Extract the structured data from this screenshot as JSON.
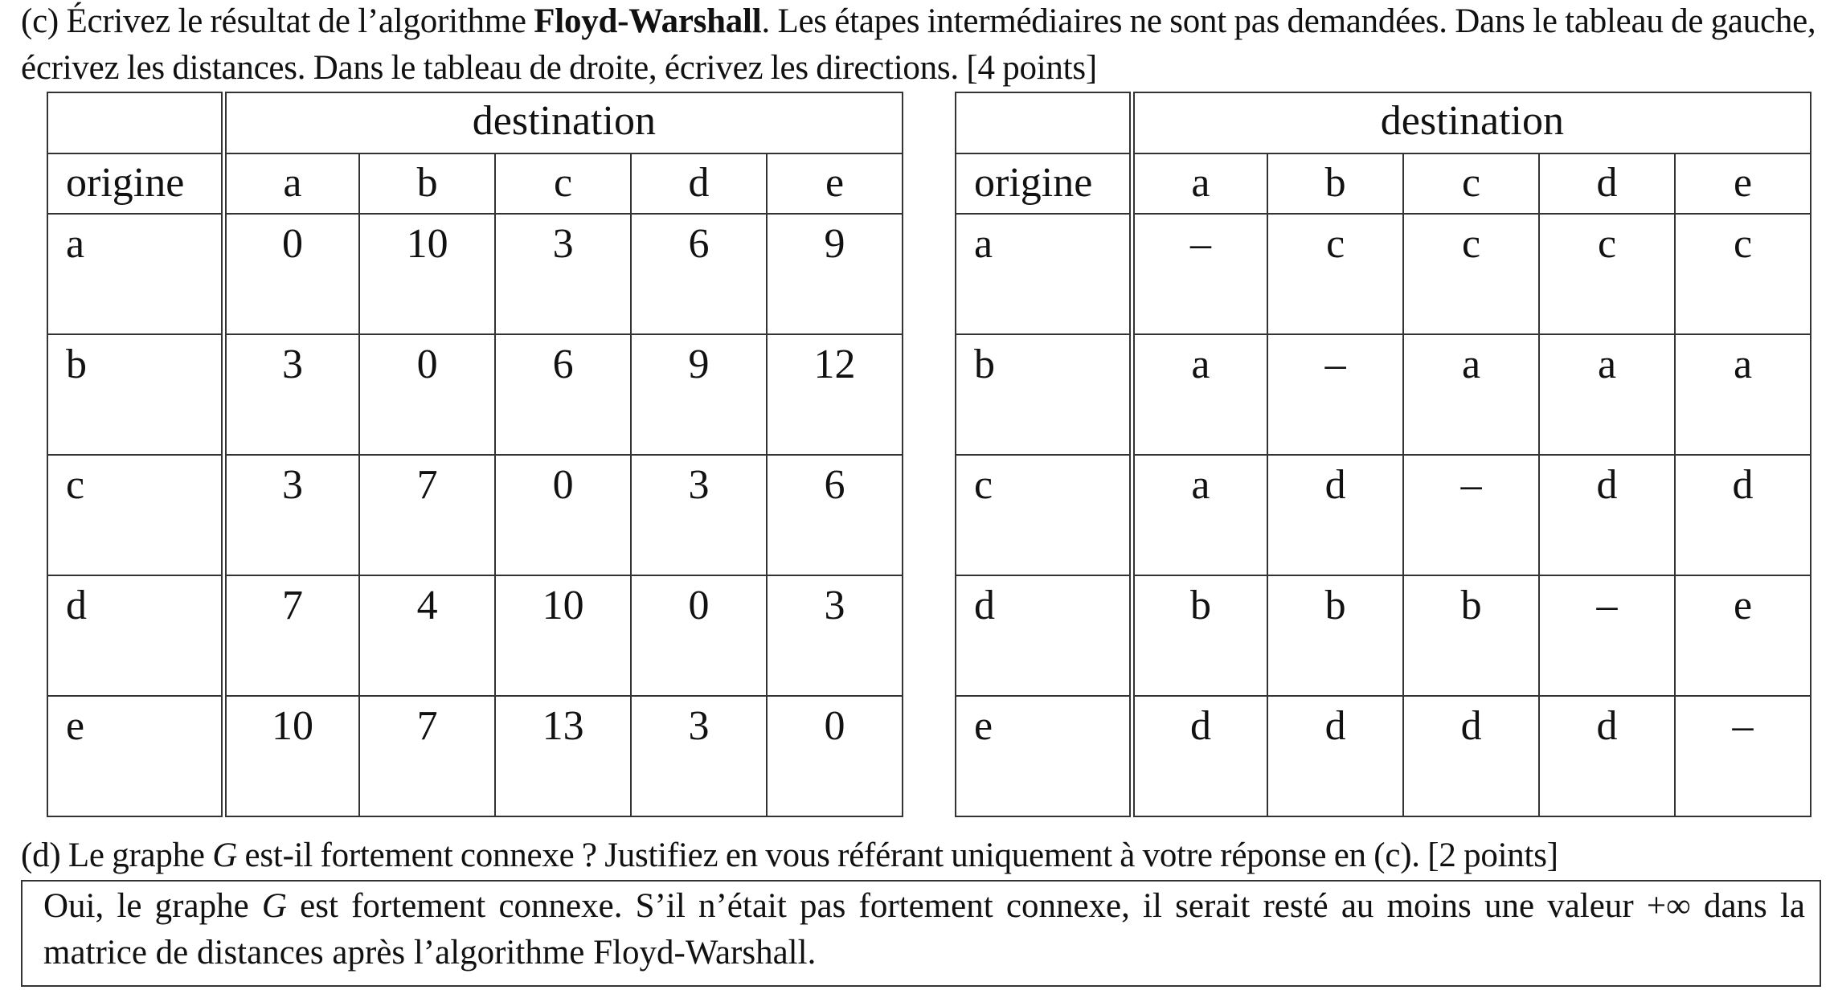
{
  "question_c": {
    "prefix": "(c) Écrivez le résultat de l’algorithme ",
    "bold": "Floyd-Warshall",
    "rest": ". Les étapes intermédiaires ne sont pas demandées. Dans le tableau de gauche, écrivez les distances. Dans le tableau de droite, écrivez les directions. [4 points]"
  },
  "distance_table": {
    "destination_label": "destination",
    "origin_label": "origine",
    "columns": [
      "a",
      "b",
      "c",
      "d",
      "e"
    ],
    "rows": [
      {
        "origin": "a",
        "values": [
          "0",
          "10",
          "3",
          "6",
          "9"
        ]
      },
      {
        "origin": "b",
        "values": [
          "3",
          "0",
          "6",
          "9",
          "12"
        ]
      },
      {
        "origin": "c",
        "values": [
          "3",
          "7",
          "0",
          "3",
          "6"
        ]
      },
      {
        "origin": "d",
        "values": [
          "7",
          "4",
          "10",
          "0",
          "3"
        ]
      },
      {
        "origin": "e",
        "values": [
          "10",
          "7",
          "13",
          "3",
          "0"
        ]
      }
    ]
  },
  "direction_table": {
    "destination_label": "destination",
    "origin_label": "origine",
    "columns": [
      "a",
      "b",
      "c",
      "d",
      "e"
    ],
    "rows": [
      {
        "origin": "a",
        "values": [
          "–",
          "c",
          "c",
          "c",
          "c"
        ]
      },
      {
        "origin": "b",
        "values": [
          "a",
          "–",
          "a",
          "a",
          "a"
        ]
      },
      {
        "origin": "c",
        "values": [
          "a",
          "d",
          "–",
          "d",
          "d"
        ]
      },
      {
        "origin": "d",
        "values": [
          "b",
          "b",
          "b",
          "–",
          "e"
        ]
      },
      {
        "origin": "e",
        "values": [
          "d",
          "d",
          "d",
          "d",
          "–"
        ]
      }
    ]
  },
  "question_d": {
    "prefix": "(d) Le graphe ",
    "italic": "G",
    "rest": " est-il fortement connexe ? Justifiez en vous référant uniquement à votre réponse en (c). [2 points]"
  },
  "answer_d": {
    "prefix": "Oui, le graphe ",
    "italic": "G",
    "rest": " est fortement connexe. S’il n’était pas fortement connexe, il serait resté au moins une valeur +∞ dans la matrice de distances après l’algorithme Floyd-Warshall."
  }
}
